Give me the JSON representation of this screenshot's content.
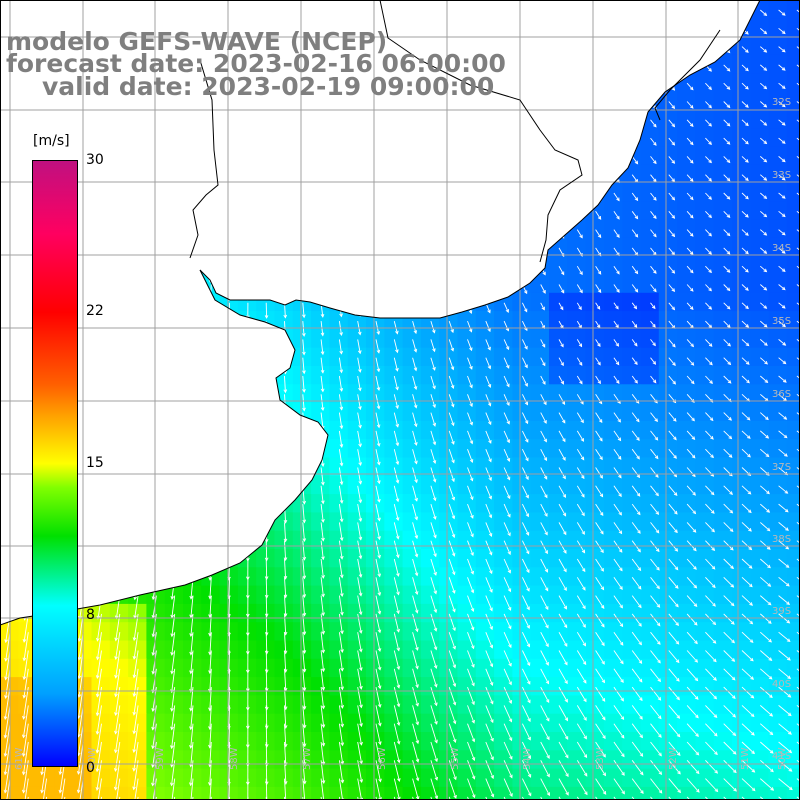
{
  "title": {
    "line1": "modelo GEFS-WAVE (NCEP)",
    "line2": "forecast date: 2023-02-16 06:00:00",
    "line3": "valid date: 2023-02-19 09:00:00"
  },
  "colorbar": {
    "unit": "[m/s]",
    "labels": [
      "30",
      "22",
      "15",
      "8",
      "0"
    ],
    "colors": [
      "#0000ff",
      "#00a0ff",
      "#00ffff",
      "#00e000",
      "#80ff00",
      "#ffff00",
      "#ffa000",
      "#ff0000",
      "#c01080"
    ]
  },
  "lat_labels": [
    "32S",
    "33S",
    "34S",
    "35S",
    "36S",
    "37S",
    "38S",
    "39S",
    "40S",
    "41S"
  ],
  "lon_labels": [
    "61W",
    "60W",
    "59W",
    "58W",
    "57W",
    "56W",
    "55W",
    "54W",
    "53W",
    "52W",
    "51W",
    "50W"
  ],
  "colors": {
    "grid": "#a0a0a0",
    "land": "#ffffff",
    "coast": "#000000",
    "arrow": "#ffffff"
  }
}
